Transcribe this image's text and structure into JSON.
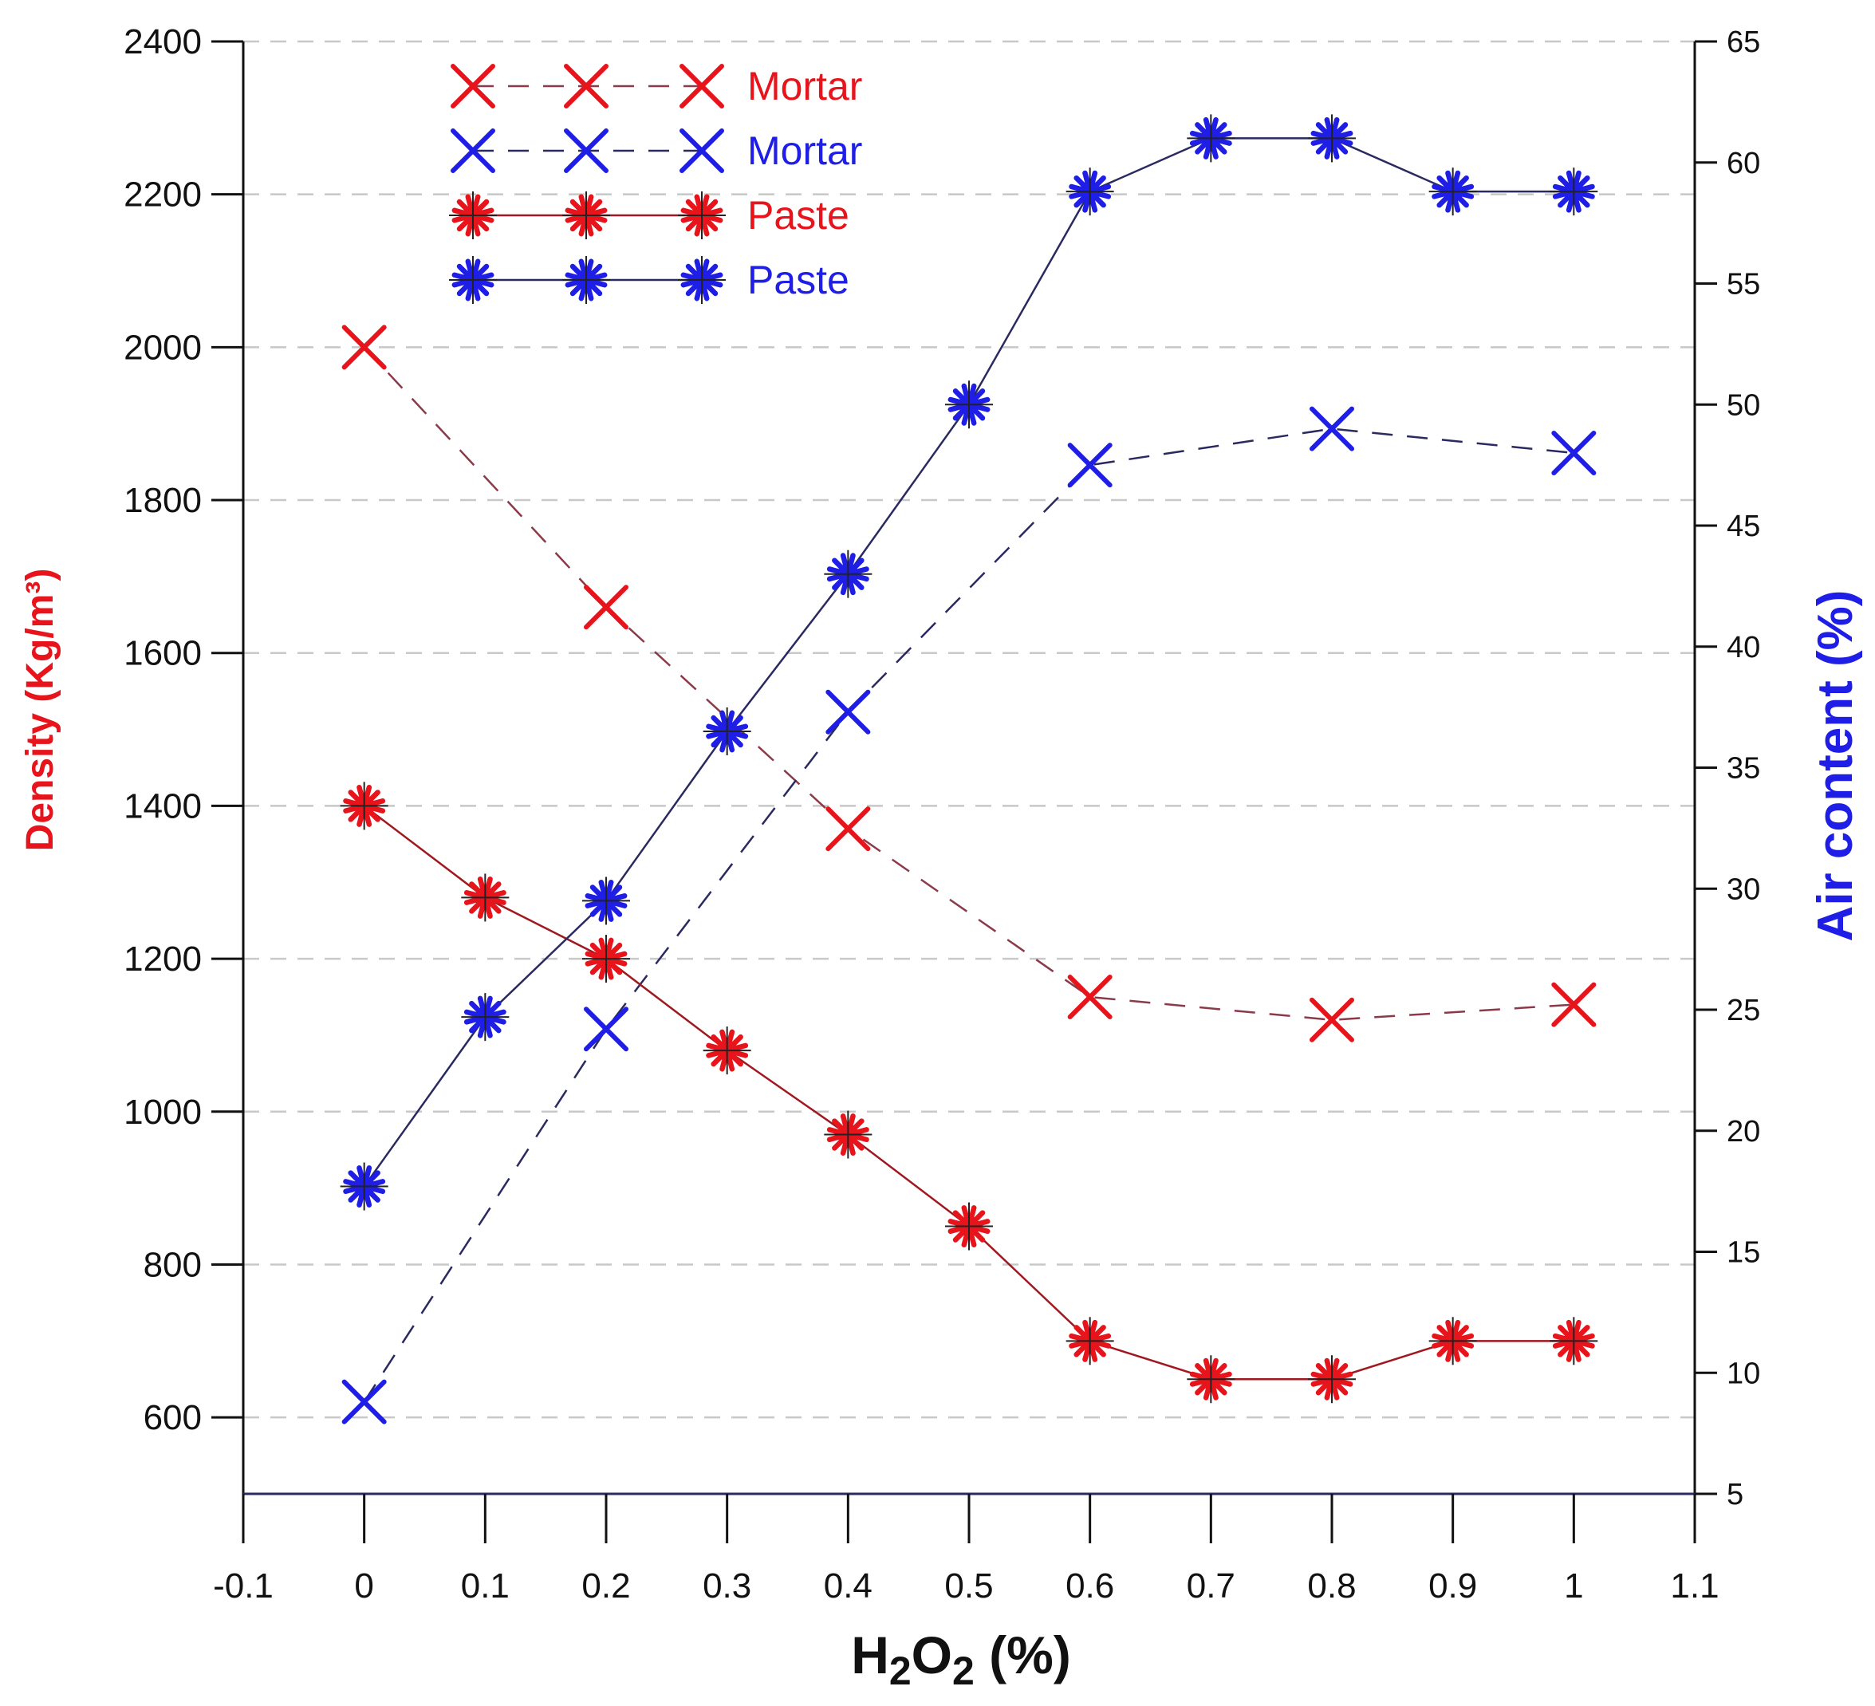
{
  "chart_data": {
    "type": "line",
    "x": [
      0,
      0.1,
      0.2,
      0.3,
      0.4,
      0.5,
      0.6,
      0.7,
      0.8,
      0.9,
      1
    ],
    "xlabel": {
      "main": "H",
      "sub1": "2",
      "mid": "O",
      "sub2": "2",
      "tail": " (%)"
    },
    "ylabel_left": "Density (Kg/m³)",
    "ylabel_right": "Air content (%)",
    "xlim": [
      -0.1,
      1.1
    ],
    "ylim_left": [
      500,
      2400
    ],
    "ylim_right": [
      5,
      65
    ],
    "x_ticks": [
      -0.1,
      0,
      0.1,
      0.2,
      0.3,
      0.4,
      0.5,
      0.6,
      0.7,
      0.8,
      0.9,
      1,
      1.1
    ],
    "x_tick_labels": [
      "-0.1",
      "0",
      "0.1",
      "0.2",
      "0.3",
      "0.4",
      "0.5",
      "0.6",
      "0.7",
      "0.8",
      "0.9",
      "1",
      "1.1"
    ],
    "y_left_ticks": [
      600,
      800,
      1000,
      1200,
      1400,
      1600,
      1800,
      2000,
      2200,
      2400
    ],
    "y_left_tick_labels": [
      "600",
      "800",
      "1000",
      "1200",
      "1400",
      "1600",
      "1800",
      "2000",
      "2200",
      "2400"
    ],
    "y_right_ticks": [
      5,
      10,
      15,
      20,
      25,
      30,
      35,
      40,
      45,
      50,
      55,
      60,
      65
    ],
    "y_right_tick_labels": [
      "5",
      "10",
      "15",
      "20",
      "25",
      "30",
      "35",
      "40",
      "45",
      "50",
      "55",
      "60",
      "65"
    ],
    "grid": "horizontal dashed",
    "legend_position": "top-left",
    "series": [
      {
        "name": "Mortar",
        "axis": "left",
        "color": "#e8141c",
        "line_color": "#8b3a4a",
        "marker": "x",
        "line_style": "dashed",
        "x": [
          0,
          0.2,
          0.4,
          0.6,
          0.8,
          1
        ],
        "values": [
          2000,
          1660,
          1370,
          1150,
          1120,
          1140
        ]
      },
      {
        "name": "Mortar",
        "axis": "right",
        "color": "#1e1ee6",
        "line_color": "#2a2a60",
        "marker": "x",
        "line_style": "dashed",
        "x": [
          0,
          0.2,
          0.4,
          0.6,
          0.8,
          1
        ],
        "values": [
          8.8,
          24.2,
          37.3,
          47.5,
          49,
          48
        ]
      },
      {
        "name": "Paste",
        "axis": "left",
        "color": "#e8141c",
        "line_color": "#a01820",
        "marker": "star",
        "line_style": "solid",
        "x": [
          0,
          0.1,
          0.2,
          0.3,
          0.4,
          0.5,
          0.6,
          0.7,
          0.8,
          0.9,
          1
        ],
        "values": [
          1400,
          1280,
          1200,
          1080,
          970,
          850,
          700,
          650,
          650,
          700,
          700
        ]
      },
      {
        "name": "Paste",
        "axis": "right",
        "color": "#1e1ee6",
        "line_color": "#2a2a60",
        "marker": "star",
        "line_style": "solid",
        "x": [
          0,
          0.1,
          0.2,
          0.3,
          0.4,
          0.5,
          0.6,
          0.7,
          0.8,
          0.9,
          1
        ],
        "values": [
          17.7,
          24.7,
          29.5,
          36.5,
          43,
          50,
          58.8,
          61,
          61,
          58.8,
          58.8
        ]
      }
    ]
  }
}
